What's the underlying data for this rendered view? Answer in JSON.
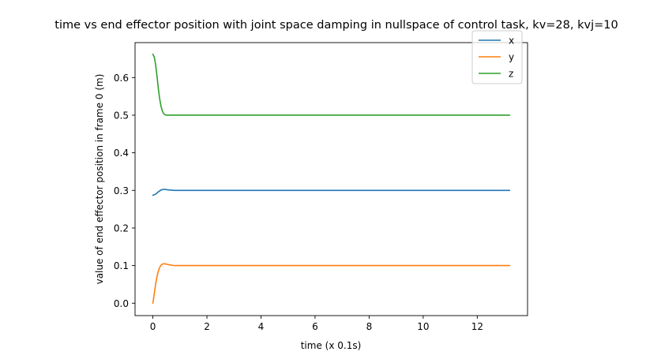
{
  "chart_data": {
    "type": "line",
    "title": "time vs end effector position with joint space damping in nullspace of control task, kv=28, kvj=10",
    "xlabel": "time (x 0.1s)",
    "ylabel": "value of end effector position in frame 0 (m)",
    "xlim": [
      -0.66,
      13.86
    ],
    "ylim": [
      -0.033,
      0.693
    ],
    "xticks": [
      0,
      2,
      4,
      6,
      8,
      10,
      12
    ],
    "xtick_labels": [
      "0",
      "2",
      "4",
      "6",
      "8",
      "10",
      "12"
    ],
    "yticks": [
      0.0,
      0.1,
      0.2,
      0.3,
      0.4,
      0.5,
      0.6
    ],
    "ytick_labels": [
      "0.0",
      "0.1",
      "0.2",
      "0.3",
      "0.4",
      "0.5",
      "0.6"
    ],
    "grid": false,
    "legend_position": "top-right",
    "series": [
      {
        "name": "x",
        "color": "#1f77b4",
        "x": [
          0,
          0.1,
          0.2,
          0.3,
          0.4,
          0.5,
          0.6,
          0.8,
          1.0,
          1.5,
          2,
          4,
          6,
          8,
          10,
          12,
          13.2
        ],
        "y": [
          0.287,
          0.29,
          0.296,
          0.301,
          0.303,
          0.302,
          0.301,
          0.3,
          0.3,
          0.3,
          0.3,
          0.3,
          0.3,
          0.3,
          0.3,
          0.3,
          0.3
        ]
      },
      {
        "name": "y",
        "color": "#ff7f0e",
        "x": [
          0,
          0.05,
          0.1,
          0.15,
          0.2,
          0.25,
          0.3,
          0.35,
          0.4,
          0.5,
          0.6,
          0.7,
          0.8,
          1.0,
          1.5,
          2,
          4,
          6,
          8,
          10,
          12,
          13.2
        ],
        "y": [
          0.0,
          0.025,
          0.05,
          0.07,
          0.085,
          0.095,
          0.101,
          0.104,
          0.105,
          0.104,
          0.102,
          0.101,
          0.1,
          0.1,
          0.1,
          0.1,
          0.1,
          0.1,
          0.1,
          0.1,
          0.1,
          0.1
        ]
      },
      {
        "name": "z",
        "color": "#2ca02c",
        "x": [
          0,
          0.05,
          0.1,
          0.15,
          0.2,
          0.25,
          0.3,
          0.35,
          0.4,
          0.45,
          0.5,
          0.6,
          0.8,
          1.0,
          1.5,
          2,
          4,
          6,
          8,
          10,
          12,
          13.2
        ],
        "y": [
          0.662,
          0.655,
          0.635,
          0.605,
          0.572,
          0.544,
          0.524,
          0.511,
          0.504,
          0.501,
          0.5,
          0.5,
          0.5,
          0.5,
          0.5,
          0.5,
          0.5,
          0.5,
          0.5,
          0.5,
          0.5,
          0.5
        ]
      }
    ]
  }
}
